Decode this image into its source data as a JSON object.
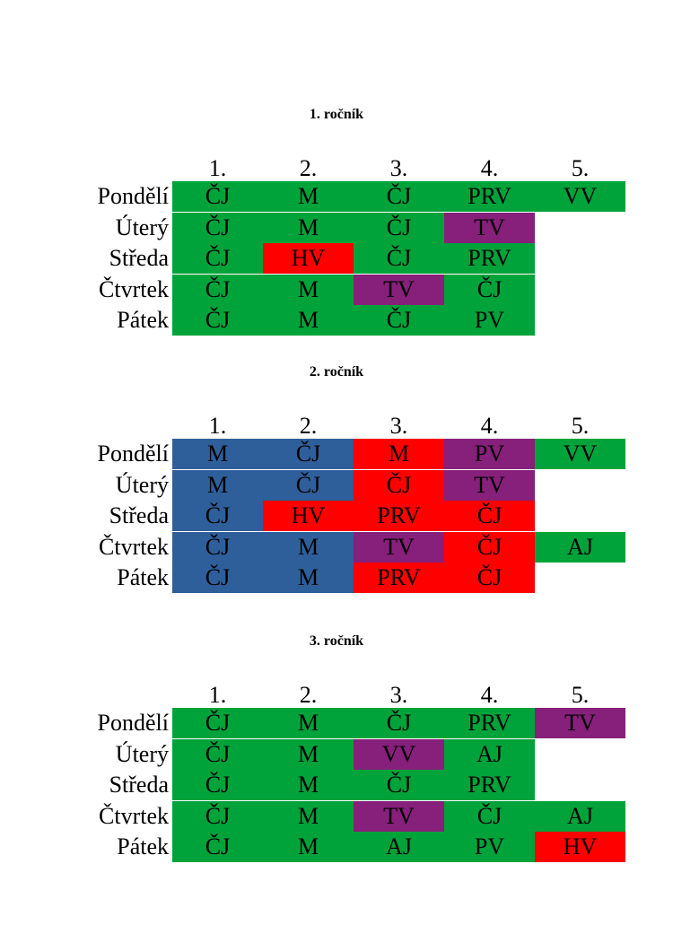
{
  "colors": {
    "green": "#00a33a",
    "blue": "#2e5f9a",
    "red": "#ff0000",
    "purple": "#86207a"
  },
  "periods": [
    "1.",
    "2.",
    "3.",
    "4.",
    "5."
  ],
  "days": [
    "Pondělí",
    "Úterý",
    "Středa",
    "Čtvrtek",
    "Pátek"
  ],
  "timetables": [
    {
      "title": "1. ročník",
      "rows": [
        [
          {
            "s": "ČJ",
            "c": "green"
          },
          {
            "s": "M",
            "c": "green"
          },
          {
            "s": "ČJ",
            "c": "green"
          },
          {
            "s": "PRV",
            "c": "green"
          },
          {
            "s": "VV",
            "c": "green"
          }
        ],
        [
          {
            "s": "ČJ",
            "c": "green"
          },
          {
            "s": "M",
            "c": "green"
          },
          {
            "s": "ČJ",
            "c": "green"
          },
          {
            "s": "TV",
            "c": "purple"
          },
          {
            "s": "",
            "c": "empty"
          }
        ],
        [
          {
            "s": "ČJ",
            "c": "green"
          },
          {
            "s": "HV",
            "c": "red"
          },
          {
            "s": "ČJ",
            "c": "green"
          },
          {
            "s": "PRV",
            "c": "green"
          },
          {
            "s": "",
            "c": "empty"
          }
        ],
        [
          {
            "s": "ČJ",
            "c": "green"
          },
          {
            "s": "M",
            "c": "green"
          },
          {
            "s": "TV",
            "c": "purple"
          },
          {
            "s": "ČJ",
            "c": "green"
          },
          {
            "s": "",
            "c": "empty"
          }
        ],
        [
          {
            "s": "ČJ",
            "c": "green"
          },
          {
            "s": "M",
            "c": "green"
          },
          {
            "s": "ČJ",
            "c": "green"
          },
          {
            "s": "PV",
            "c": "green"
          },
          {
            "s": "",
            "c": "empty"
          }
        ]
      ]
    },
    {
      "title": "2. ročník",
      "rows": [
        [
          {
            "s": "M",
            "c": "blue"
          },
          {
            "s": "ČJ",
            "c": "blue"
          },
          {
            "s": "M",
            "c": "red"
          },
          {
            "s": "PV",
            "c": "purple"
          },
          {
            "s": "VV",
            "c": "green"
          }
        ],
        [
          {
            "s": "M",
            "c": "blue"
          },
          {
            "s": "ČJ",
            "c": "blue"
          },
          {
            "s": "ČJ",
            "c": "red"
          },
          {
            "s": "TV",
            "c": "purple"
          },
          {
            "s": "",
            "c": "empty"
          }
        ],
        [
          {
            "s": "ČJ",
            "c": "blue"
          },
          {
            "s": "HV",
            "c": "red"
          },
          {
            "s": "PRV",
            "c": "red"
          },
          {
            "s": "ČJ",
            "c": "red"
          },
          {
            "s": "",
            "c": "empty"
          }
        ],
        [
          {
            "s": "ČJ",
            "c": "blue"
          },
          {
            "s": "M",
            "c": "blue"
          },
          {
            "s": "TV",
            "c": "purple"
          },
          {
            "s": "ČJ",
            "c": "red"
          },
          {
            "s": "AJ",
            "c": "green"
          }
        ],
        [
          {
            "s": "ČJ",
            "c": "blue"
          },
          {
            "s": "M",
            "c": "blue"
          },
          {
            "s": "PRV",
            "c": "red"
          },
          {
            "s": "ČJ",
            "c": "red"
          },
          {
            "s": "",
            "c": "empty"
          }
        ]
      ]
    },
    {
      "title": "3. ročník",
      "rows": [
        [
          {
            "s": "ČJ",
            "c": "green"
          },
          {
            "s": "M",
            "c": "green"
          },
          {
            "s": "ČJ",
            "c": "green"
          },
          {
            "s": "PRV",
            "c": "green"
          },
          {
            "s": "TV",
            "c": "purple"
          }
        ],
        [
          {
            "s": "ČJ",
            "c": "green"
          },
          {
            "s": "M",
            "c": "green"
          },
          {
            "s": "VV",
            "c": "purple"
          },
          {
            "s": "AJ",
            "c": "green"
          },
          {
            "s": "",
            "c": "empty"
          }
        ],
        [
          {
            "s": "ČJ",
            "c": "green"
          },
          {
            "s": "M",
            "c": "green"
          },
          {
            "s": "ČJ",
            "c": "green"
          },
          {
            "s": "PRV",
            "c": "green"
          },
          {
            "s": "",
            "c": "empty"
          }
        ],
        [
          {
            "s": "ČJ",
            "c": "green"
          },
          {
            "s": "M",
            "c": "green"
          },
          {
            "s": "TV",
            "c": "purple"
          },
          {
            "s": "ČJ",
            "c": "green"
          },
          {
            "s": "AJ",
            "c": "green"
          }
        ],
        [
          {
            "s": "ČJ",
            "c": "green"
          },
          {
            "s": "M",
            "c": "green"
          },
          {
            "s": "AJ",
            "c": "green"
          },
          {
            "s": "PV",
            "c": "green"
          },
          {
            "s": "HV",
            "c": "red"
          }
        ]
      ]
    }
  ]
}
